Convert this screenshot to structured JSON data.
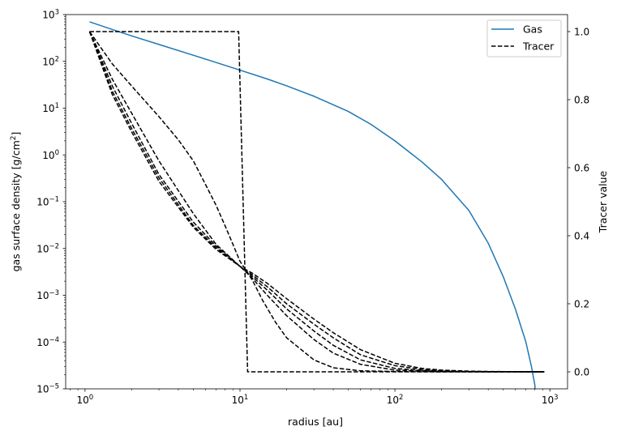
{
  "chart_data": {
    "type": "line",
    "xlabel": "radius [au]",
    "ylabel_left": "gas surface density [g/cm",
    "ylabel_left_sup": "2",
    "ylabel_left_end": "]",
    "ylabel_right": "Tracer value",
    "x_scale": "log",
    "y_left_scale": "log",
    "xlim": [
      0.75,
      1300
    ],
    "ylim_left": [
      1e-05,
      1000
    ],
    "ylim_right": [
      -0.05,
      1.05
    ],
    "x_ticks": [
      {
        "value": 1,
        "base": "10",
        "exp": "0"
      },
      {
        "value": 10,
        "base": "10",
        "exp": "1"
      },
      {
        "value": 100,
        "base": "10",
        "exp": "2"
      },
      {
        "value": 1000,
        "base": "10",
        "exp": "3"
      }
    ],
    "y_left_ticks": [
      {
        "value": 1e-05,
        "base": "10",
        "exp": "−5"
      },
      {
        "value": 0.0001,
        "base": "10",
        "exp": "−4"
      },
      {
        "value": 0.001,
        "base": "10",
        "exp": "−3"
      },
      {
        "value": 0.01,
        "base": "10",
        "exp": "−2"
      },
      {
        "value": 0.1,
        "base": "10",
        "exp": "−1"
      },
      {
        "value": 1,
        "base": "10",
        "exp": "0"
      },
      {
        "value": 10,
        "base": "10",
        "exp": "1"
      },
      {
        "value": 100,
        "base": "10",
        "exp": "2"
      },
      {
        "value": 1000,
        "base": "10",
        "exp": "3"
      }
    ],
    "y_right_ticks": [
      {
        "value": 0.0,
        "label": "0.0"
      },
      {
        "value": 0.2,
        "label": "0.2"
      },
      {
        "value": 0.4,
        "label": "0.4"
      },
      {
        "value": 0.6,
        "label": "0.6"
      },
      {
        "value": 0.8,
        "label": "0.8"
      },
      {
        "value": 1.0,
        "label": "1.0"
      }
    ],
    "legend": {
      "placement": "top-right",
      "entries": [
        {
          "label": "Gas",
          "color": "#1f77b4",
          "style": "solid"
        },
        {
          "label": "Tracer",
          "color": "#000000",
          "style": "dashed"
        }
      ]
    },
    "series": [
      {
        "name": "Gas",
        "axis": "left",
        "color": "#1f77b4",
        "style": "solid",
        "x": [
          1.07,
          1.5,
          2,
          3,
          5,
          7,
          10,
          15,
          20,
          30,
          50,
          70,
          100,
          150,
          200,
          300,
          400,
          500,
          600,
          700,
          760,
          800,
          820
        ],
        "y": [
          700,
          480,
          350,
          230,
          135,
          95,
          65,
          42,
          30,
          18,
          8.5,
          4.5,
          2.0,
          0.7,
          0.3,
          0.065,
          0.013,
          0.0025,
          0.0005,
          0.0001,
          3e-05,
          1.2e-05,
          1e-06
        ]
      },
      {
        "name": "",
        "axis": "right",
        "color": "#000000",
        "style": "dashed",
        "x": [
          1.07,
          9.8,
          11.2,
          920
        ],
        "y": [
          1.0,
          1.0,
          0.0,
          0.0
        ]
      },
      {
        "name": "",
        "axis": "right",
        "color": "#000000",
        "style": "dashed",
        "x": [
          1.07,
          1.5,
          2,
          3,
          4,
          5,
          6,
          7,
          8,
          9,
          10,
          12,
          14,
          17,
          20,
          30,
          40,
          60,
          100,
          200,
          400,
          920
        ],
        "y": [
          1.0,
          0.905,
          0.84,
          0.75,
          0.682,
          0.62,
          0.55,
          0.49,
          0.43,
          0.375,
          0.325,
          0.27,
          0.21,
          0.145,
          0.1,
          0.035,
          0.012,
          0.003,
          0.001,
          0.0,
          0.0,
          0.0
        ]
      },
      {
        "name": "",
        "axis": "right",
        "color": "#000000",
        "style": "dashed",
        "x": [
          1.07,
          1.5,
          2,
          3,
          5,
          7,
          10,
          12,
          15,
          20,
          30,
          40,
          60,
          100,
          200,
          400,
          920
        ],
        "y": [
          1.0,
          0.86,
          0.76,
          0.62,
          0.465,
          0.375,
          0.31,
          0.275,
          0.225,
          0.165,
          0.095,
          0.055,
          0.022,
          0.005,
          0.001,
          0.0,
          0.0
        ]
      },
      {
        "name": "",
        "axis": "right",
        "color": "#000000",
        "style": "dashed",
        "x": [
          1.07,
          1.5,
          2,
          3,
          5,
          7,
          10,
          12,
          15,
          20,
          30,
          40,
          60,
          100,
          150,
          200,
          400,
          920
        ],
        "y": [
          1.0,
          0.84,
          0.73,
          0.58,
          0.44,
          0.37,
          0.31,
          0.28,
          0.24,
          0.185,
          0.12,
          0.078,
          0.035,
          0.01,
          0.004,
          0.001,
          0.0,
          0.0
        ]
      },
      {
        "name": "",
        "axis": "right",
        "color": "#000000",
        "style": "dashed",
        "x": [
          1.07,
          1.5,
          2,
          3,
          5,
          7,
          10,
          12,
          15,
          20,
          30,
          40,
          60,
          100,
          150,
          200,
          300,
          920
        ],
        "y": [
          1.0,
          0.825,
          0.715,
          0.57,
          0.43,
          0.365,
          0.31,
          0.285,
          0.25,
          0.2,
          0.14,
          0.1,
          0.05,
          0.018,
          0.007,
          0.003,
          0.001,
          0.0
        ]
      },
      {
        "name": "",
        "axis": "right",
        "color": "#000000",
        "style": "dashed",
        "x": [
          1.07,
          1.5,
          2,
          3,
          5,
          7,
          10,
          12,
          15,
          20,
          30,
          40,
          60,
          100,
          150,
          200,
          300,
          400,
          920
        ],
        "y": [
          1.0,
          0.815,
          0.705,
          0.56,
          0.425,
          0.36,
          0.31,
          0.29,
          0.26,
          0.215,
          0.155,
          0.115,
          0.065,
          0.025,
          0.01,
          0.005,
          0.002,
          0.001,
          0.0
        ]
      }
    ]
  }
}
